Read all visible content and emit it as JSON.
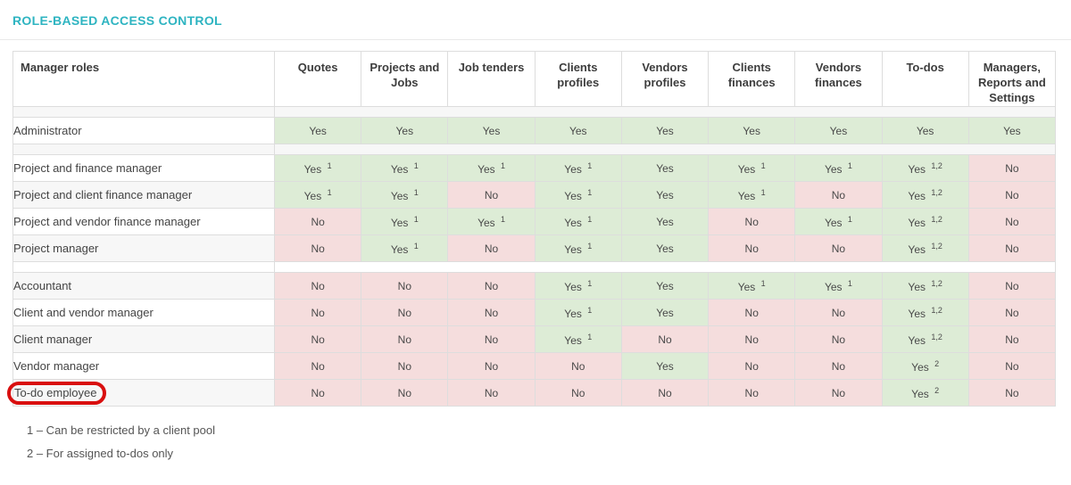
{
  "title": "ROLE-BASED ACCESS CONTROL",
  "colors": {
    "accent": "#2eb4c1",
    "yes_cell": "#ddecd6",
    "no_cell": "#f5dddd",
    "row_stripe": "#f7f7f7",
    "highlight_oval": "#d90f0f",
    "border": "#dddddd"
  },
  "table": {
    "role_header": "Manager roles",
    "columns": [
      "Quotes",
      "Projects and Jobs",
      "Job tenders",
      "Clients profiles",
      "Vendors profiles",
      "Clients finances",
      "Vendors finances",
      "To-dos",
      "Managers, Reports and Settings"
    ],
    "rows": [
      {
        "type": "spacer"
      },
      {
        "type": "role",
        "name": "Administrator",
        "cells": [
          {
            "v": "Yes"
          },
          {
            "v": "Yes"
          },
          {
            "v": "Yes"
          },
          {
            "v": "Yes"
          },
          {
            "v": "Yes"
          },
          {
            "v": "Yes"
          },
          {
            "v": "Yes"
          },
          {
            "v": "Yes"
          },
          {
            "v": "Yes"
          }
        ]
      },
      {
        "type": "spacer"
      },
      {
        "type": "role",
        "name": "Project and finance manager",
        "cells": [
          {
            "v": "Yes",
            "sup": "1"
          },
          {
            "v": "Yes",
            "sup": "1"
          },
          {
            "v": "Yes",
            "sup": "1"
          },
          {
            "v": "Yes",
            "sup": "1"
          },
          {
            "v": "Yes"
          },
          {
            "v": "Yes",
            "sup": "1"
          },
          {
            "v": "Yes",
            "sup": "1"
          },
          {
            "v": "Yes",
            "sup": "1,2"
          },
          {
            "v": "No"
          }
        ]
      },
      {
        "type": "role",
        "name": "Project and client finance manager",
        "cells": [
          {
            "v": "Yes",
            "sup": "1"
          },
          {
            "v": "Yes",
            "sup": "1"
          },
          {
            "v": "No"
          },
          {
            "v": "Yes",
            "sup": "1"
          },
          {
            "v": "Yes"
          },
          {
            "v": "Yes",
            "sup": "1"
          },
          {
            "v": "No"
          },
          {
            "v": "Yes",
            "sup": "1,2"
          },
          {
            "v": "No"
          }
        ]
      },
      {
        "type": "role",
        "name": "Project and vendor finance manager",
        "cells": [
          {
            "v": "No"
          },
          {
            "v": "Yes",
            "sup": "1"
          },
          {
            "v": "Yes",
            "sup": "1"
          },
          {
            "v": "Yes",
            "sup": "1"
          },
          {
            "v": "Yes"
          },
          {
            "v": "No"
          },
          {
            "v": "Yes",
            "sup": "1"
          },
          {
            "v": "Yes",
            "sup": "1,2"
          },
          {
            "v": "No"
          }
        ]
      },
      {
        "type": "role",
        "name": "Project manager",
        "cells": [
          {
            "v": "No"
          },
          {
            "v": "Yes",
            "sup": "1"
          },
          {
            "v": "No"
          },
          {
            "v": "Yes",
            "sup": "1"
          },
          {
            "v": "Yes"
          },
          {
            "v": "No"
          },
          {
            "v": "No"
          },
          {
            "v": "Yes",
            "sup": "1,2"
          },
          {
            "v": "No"
          }
        ]
      },
      {
        "type": "spacer"
      },
      {
        "type": "role",
        "name": "Accountant",
        "cells": [
          {
            "v": "No"
          },
          {
            "v": "No"
          },
          {
            "v": "No"
          },
          {
            "v": "Yes",
            "sup": "1"
          },
          {
            "v": "Yes"
          },
          {
            "v": "Yes",
            "sup": "1"
          },
          {
            "v": "Yes",
            "sup": "1"
          },
          {
            "v": "Yes",
            "sup": "1,2"
          },
          {
            "v": "No"
          }
        ]
      },
      {
        "type": "role",
        "name": "Client and vendor manager",
        "cells": [
          {
            "v": "No"
          },
          {
            "v": "No"
          },
          {
            "v": "No"
          },
          {
            "v": "Yes",
            "sup": "1"
          },
          {
            "v": "Yes"
          },
          {
            "v": "No"
          },
          {
            "v": "No"
          },
          {
            "v": "Yes",
            "sup": "1,2"
          },
          {
            "v": "No"
          }
        ]
      },
      {
        "type": "role",
        "name": "Client manager",
        "cells": [
          {
            "v": "No"
          },
          {
            "v": "No"
          },
          {
            "v": "No"
          },
          {
            "v": "Yes",
            "sup": "1"
          },
          {
            "v": "No"
          },
          {
            "v": "No"
          },
          {
            "v": "No"
          },
          {
            "v": "Yes",
            "sup": "1,2"
          },
          {
            "v": "No"
          }
        ]
      },
      {
        "type": "role",
        "name": "Vendor manager",
        "cells": [
          {
            "v": "No"
          },
          {
            "v": "No"
          },
          {
            "v": "No"
          },
          {
            "v": "No"
          },
          {
            "v": "Yes"
          },
          {
            "v": "No"
          },
          {
            "v": "No"
          },
          {
            "v": "Yes",
            "sup": "2"
          },
          {
            "v": "No"
          }
        ]
      },
      {
        "type": "role",
        "name": "To-do employee",
        "cells": [
          {
            "v": "No"
          },
          {
            "v": "No"
          },
          {
            "v": "No"
          },
          {
            "v": "No"
          },
          {
            "v": "No"
          },
          {
            "v": "No"
          },
          {
            "v": "No"
          },
          {
            "v": "Yes",
            "sup": "2"
          },
          {
            "v": "No"
          }
        ]
      }
    ]
  },
  "highlight": {
    "row": "To-do employee",
    "color": "#d90f0f"
  },
  "footnotes": [
    "1 – Can be restricted by a client pool",
    "2 – For assigned to-dos only"
  ]
}
